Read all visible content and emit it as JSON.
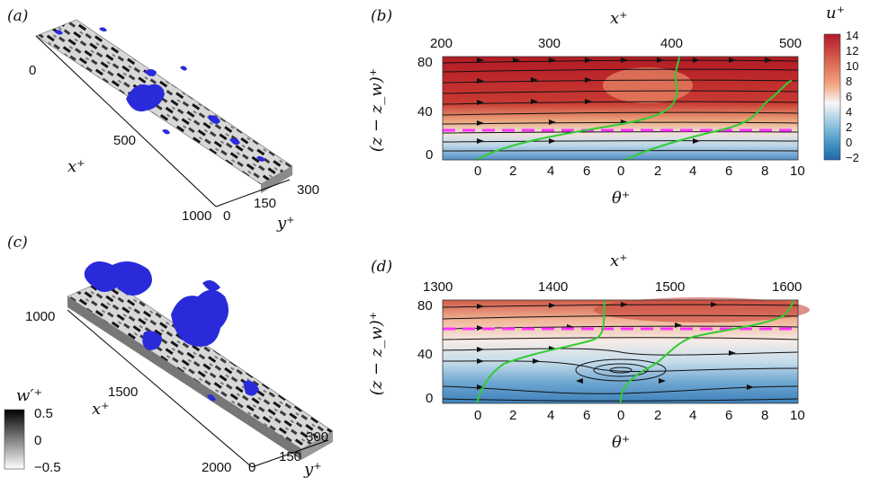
{
  "panels": {
    "a": {
      "label": "(a)",
      "x_ticks": [
        "0",
        "500",
        "1000"
      ],
      "x_label": "x⁺",
      "y_ticks": [
        "0",
        "150",
        "300"
      ],
      "y_label": "y⁺"
    },
    "b": {
      "label": "(b)",
      "top_ticks": [
        "200",
        "300",
        "400",
        "500"
      ],
      "top_label": "x⁺",
      "left_ticks": [
        "80",
        "40",
        "0"
      ],
      "left_label": "(z − z_w)⁺",
      "bottom_ticks": [
        "0",
        "2",
        "4",
        "6",
        "0",
        "2",
        "4",
        "6",
        "8",
        "10"
      ],
      "bottom_label": "θ⁺"
    },
    "c": {
      "label": "(c)",
      "x_ticks": [
        "1000",
        "1500",
        "2000"
      ],
      "x_label": "x⁺",
      "y_ticks": [
        "0",
        "150",
        "300"
      ],
      "y_label": "y⁺"
    },
    "d": {
      "label": "(d)",
      "top_ticks": [
        "1300",
        "1400",
        "1500",
        "1600"
      ],
      "top_label": "x⁺",
      "left_ticks": [
        "80",
        "40",
        "0"
      ],
      "left_label": "(z − z_w)⁺",
      "bottom_ticks": [
        "0",
        "2",
        "4",
        "6",
        "0",
        "2",
        "4",
        "6",
        "8",
        "10"
      ],
      "bottom_label": "θ⁺"
    }
  },
  "colorbar_u": {
    "title": "u⁺",
    "ticks": [
      "14",
      "12",
      "10",
      "8",
      "6",
      "4",
      "2",
      "0",
      "−2"
    ],
    "colors": [
      "#b2182b",
      "#d6604d",
      "#f4a582",
      "#f7f7f7",
      "#92c5de",
      "#4393c3",
      "#2166ac"
    ]
  },
  "colorbar_w": {
    "title": "w′⁺",
    "ticks": [
      "0.5",
      "0",
      "−0.5"
    ]
  },
  "colors": {
    "isosurface": "#2a2adb",
    "profile": "#33cc33",
    "dashed_line": "#ff33ff"
  }
}
